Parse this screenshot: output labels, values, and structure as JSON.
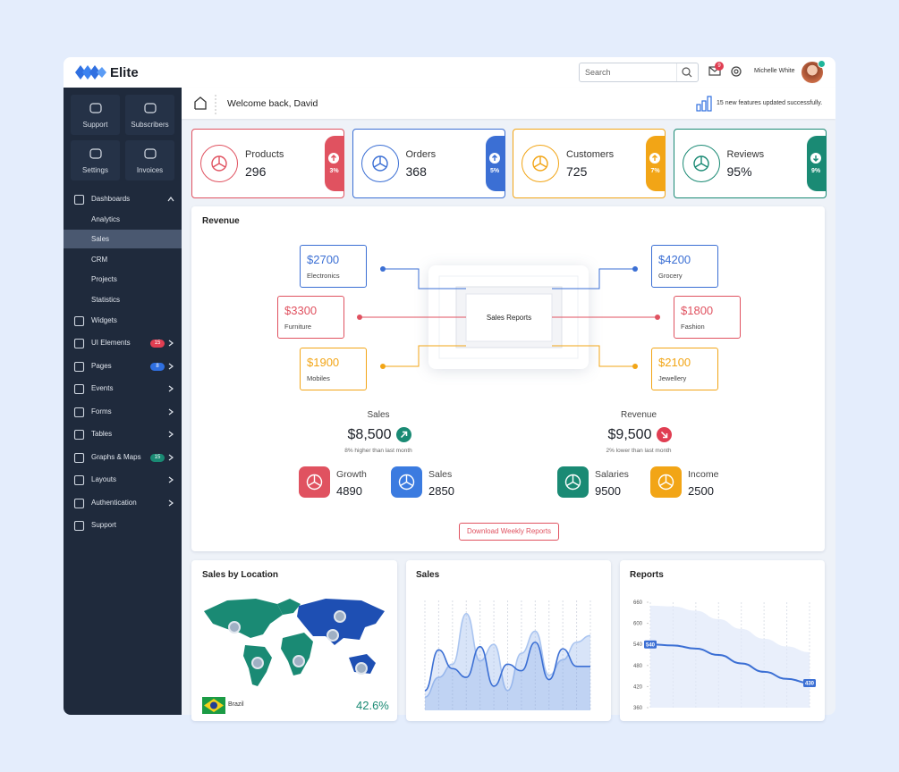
{
  "header": {
    "brand": "Elite",
    "search_placeholder": "Search",
    "notifications": "9",
    "user": "Michelle White"
  },
  "sidebar": {
    "tiles": [
      "Support",
      "Subscribers",
      "Settings",
      "Invoices"
    ],
    "menu": [
      {
        "label": "Dashboards",
        "children": [
          "Analytics",
          "Sales",
          "CRM",
          "Projects",
          "Statistics"
        ]
      },
      {
        "label": "Widgets",
        "chevron": false
      },
      {
        "label": "UI Elements",
        "badge": "15",
        "badge_color": "#e03e52",
        "chevron": true
      },
      {
        "label": "Pages",
        "badge": "8",
        "badge_color": "#2f6fe0",
        "chevron": true
      },
      {
        "label": "Events",
        "chevron": true
      },
      {
        "label": "Forms",
        "chevron": true
      },
      {
        "label": "Tables",
        "chevron": true
      },
      {
        "label": "Graphs & Maps",
        "badge": "15",
        "badge_color": "#1a8a74",
        "chevron": true
      },
      {
        "label": "Layouts",
        "chevron": true
      },
      {
        "label": "Authentication",
        "chevron": true
      },
      {
        "label": "Support",
        "chevron": false
      }
    ]
  },
  "welcome": {
    "text": "Welcome back, David",
    "notice": "15 new features updated successfully."
  },
  "stats": [
    {
      "label": "Products",
      "value": "296",
      "change": "3%",
      "color": "#e05260",
      "trend": "up"
    },
    {
      "label": "Orders",
      "value": "368",
      "change": "5%",
      "color": "#3b6fd4",
      "trend": "up"
    },
    {
      "label": "Customers",
      "value": "725",
      "change": "7%",
      "color": "#f2a516",
      "trend": "up"
    },
    {
      "label": "Reviews",
      "value": "95%",
      "change": "9%",
      "color": "#1a8a74",
      "trend": "down"
    }
  ],
  "revenue": {
    "title": "Revenue",
    "center": "Sales Reports",
    "items": [
      {
        "amount": "$2700",
        "label": "Electronics",
        "color": "#3b6fd4"
      },
      {
        "amount": "$3300",
        "label": "Furniture",
        "color": "#e05260"
      },
      {
        "amount": "$1900",
        "label": "Mobiles",
        "color": "#f2a516"
      },
      {
        "amount": "$4200",
        "label": "Grocery",
        "color": "#3b6fd4"
      },
      {
        "amount": "$1800",
        "label": "Fashion",
        "color": "#e05260"
      },
      {
        "amount": "$2100",
        "label": "Jewellery",
        "color": "#f2a516"
      }
    ],
    "summary": [
      {
        "title": "Sales",
        "amount": "$8,500",
        "note": "8% higher than last month",
        "trend": "up",
        "color": "#1a8a74"
      },
      {
        "title": "Revenue",
        "amount": "$9,500",
        "note": "2% lower than last month",
        "trend": "down",
        "color": "#e03e52"
      }
    ],
    "metrics": [
      {
        "label": "Growth",
        "value": "4890",
        "color": "#e05260"
      },
      {
        "label": "Sales",
        "value": "2850",
        "color": "#3b7be0"
      },
      {
        "label": "Salaries",
        "value": "9500",
        "color": "#1a8a74"
      },
      {
        "label": "Income",
        "value": "2500",
        "color": "#f2a516"
      }
    ],
    "button": "Download Weekly Reports"
  },
  "location": {
    "title": "Sales by Location",
    "country": "Brazil",
    "share": "42.6%"
  },
  "sales_chart": {
    "title": "Sales",
    "ylim": [
      0,
      100
    ],
    "series": [
      {
        "color": "#a9c4f0",
        "values": [
          12,
          30,
          42,
          88,
          45,
          60,
          18,
          52,
          72,
          32,
          46,
          62,
          68
        ]
      },
      {
        "color": "#3b6fd4",
        "values": [
          18,
          55,
          38,
          30,
          58,
          22,
          42,
          36,
          62,
          28,
          56,
          40,
          40
        ]
      }
    ]
  },
  "reports": {
    "title": "Reports",
    "ylim": [
      360,
      660
    ],
    "yticks": [
      660,
      600,
      540,
      480,
      420,
      360
    ],
    "values": [
      540,
      537,
      528,
      510,
      486,
      462,
      442,
      430
    ],
    "upper": [
      650,
      648,
      636,
      612,
      584,
      556,
      534,
      518
    ],
    "color": "#3b6fd4"
  }
}
